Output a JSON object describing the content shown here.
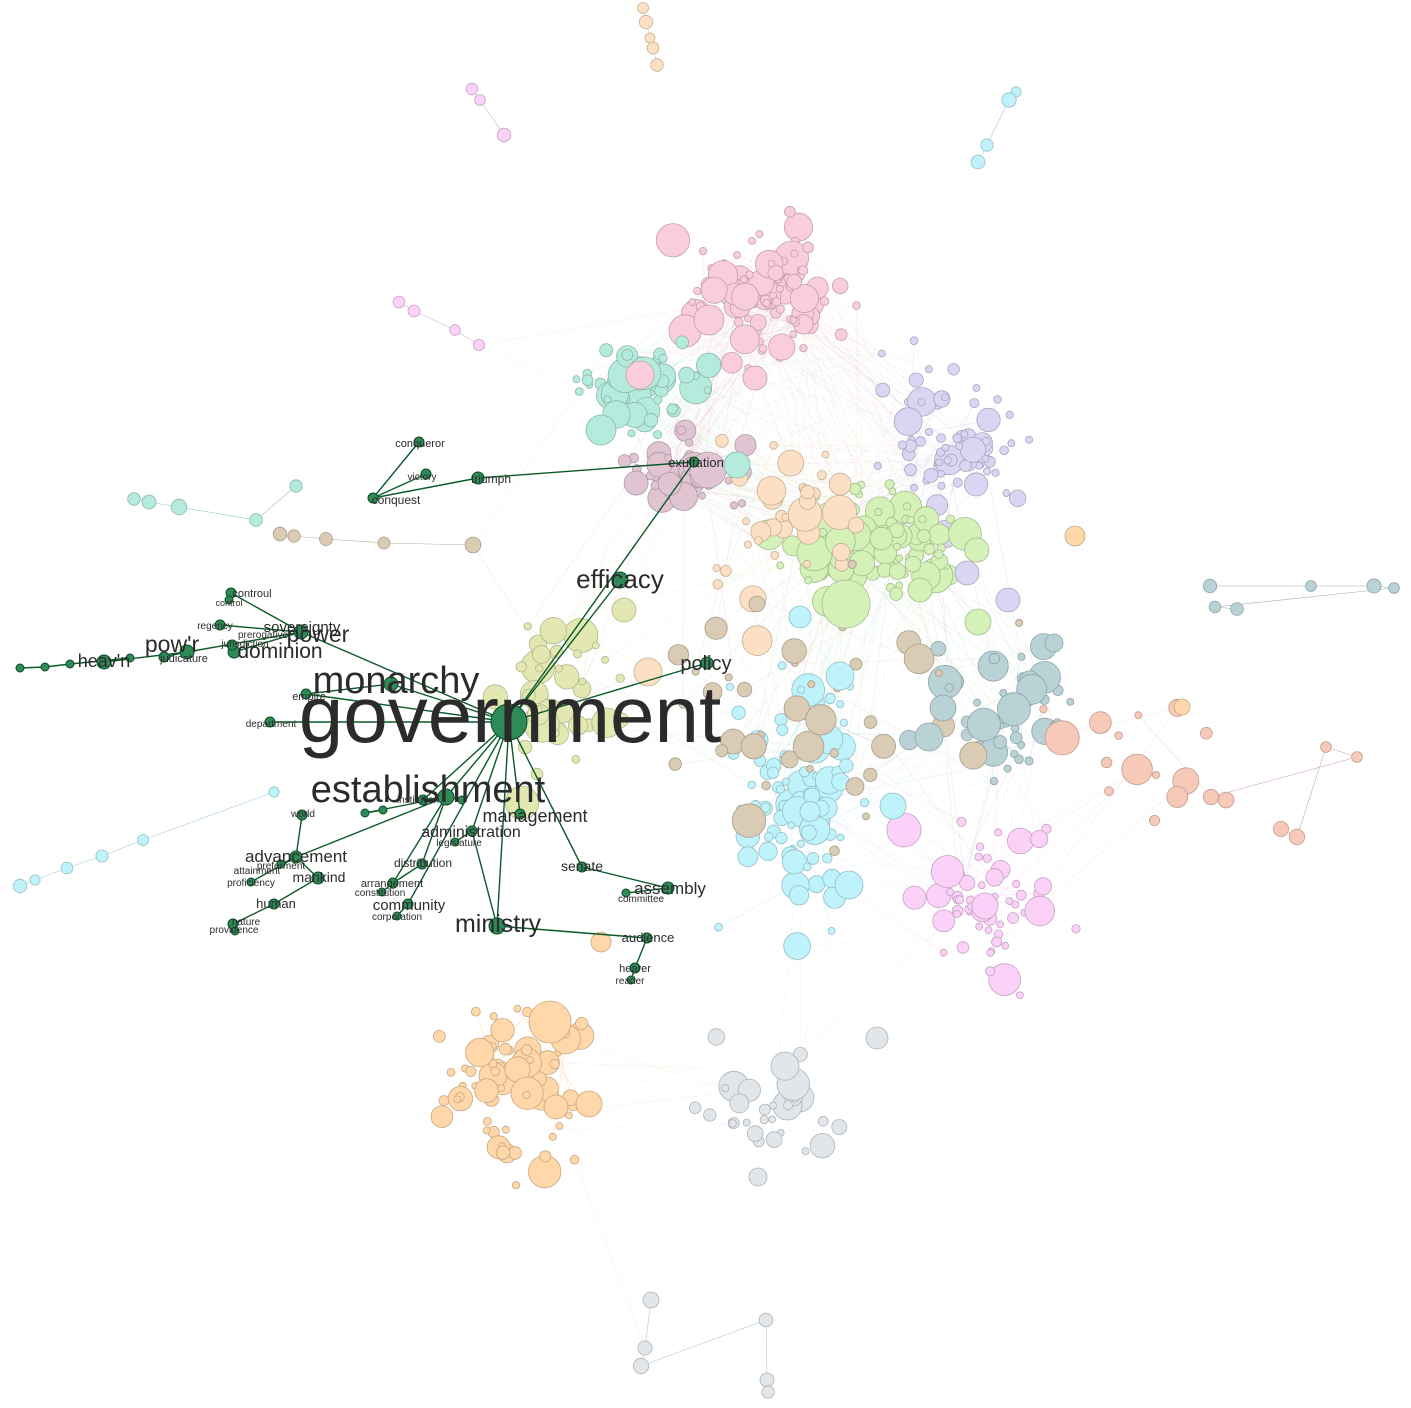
{
  "title": "",
  "focus_term": "government",
  "colors": {
    "highlight_node": "#2e8b57",
    "highlight_edge": "#0b5a2a",
    "label": "#2b2b2b",
    "clusters": {
      "pink": "#f9cdd9",
      "mint": "#b5ebdd",
      "lavender": "#d9d5f2",
      "lightgreen": "#d4f1b8",
      "cyan": "#bff3fb",
      "peach": "#fde0c3",
      "orange": "#ffd7a8",
      "tan": "#d9cbb4",
      "mauve": "#e0c4d2",
      "slate": "#b9d2d6",
      "magenta": "#fbd1f7",
      "olive": "#e3e8b3",
      "silver": "#e1e6ea",
      "salmon": "#f6c9b8"
    }
  },
  "labels": [
    {
      "text": "government"
    },
    {
      "text": "establishment"
    },
    {
      "text": "monarchy"
    },
    {
      "text": "efficacy"
    },
    {
      "text": "ministry"
    },
    {
      "text": "pow'r"
    },
    {
      "text": "power"
    },
    {
      "text": "dominion"
    },
    {
      "text": "sovereignty"
    },
    {
      "text": "heav'n"
    },
    {
      "text": "management"
    },
    {
      "text": "policy"
    },
    {
      "text": "assembly"
    },
    {
      "text": "advancement"
    },
    {
      "text": "administration"
    },
    {
      "text": "exultation"
    },
    {
      "text": "community"
    },
    {
      "text": "mankind"
    },
    {
      "text": "human"
    },
    {
      "text": "senate"
    },
    {
      "text": "distribution"
    },
    {
      "text": "audience"
    },
    {
      "text": "conqueror"
    },
    {
      "text": "triumph"
    },
    {
      "text": "conquest"
    },
    {
      "text": "victory"
    },
    {
      "text": "controul"
    },
    {
      "text": "control"
    },
    {
      "text": "regency"
    },
    {
      "text": "prerogative"
    },
    {
      "text": "jurisdiction"
    },
    {
      "text": "judicature"
    },
    {
      "text": "empire"
    },
    {
      "text": "department"
    },
    {
      "text": "institution"
    },
    {
      "text": "legislature"
    },
    {
      "text": "arrangement"
    },
    {
      "text": "constitution"
    },
    {
      "text": "corporation"
    },
    {
      "text": "committee"
    },
    {
      "text": "hearer"
    },
    {
      "text": "reader"
    },
    {
      "text": "world"
    },
    {
      "text": "nature"
    },
    {
      "text": "providence"
    },
    {
      "text": "proficiency"
    },
    {
      "text": "preferment"
    },
    {
      "text": "attainment"
    }
  ]
}
